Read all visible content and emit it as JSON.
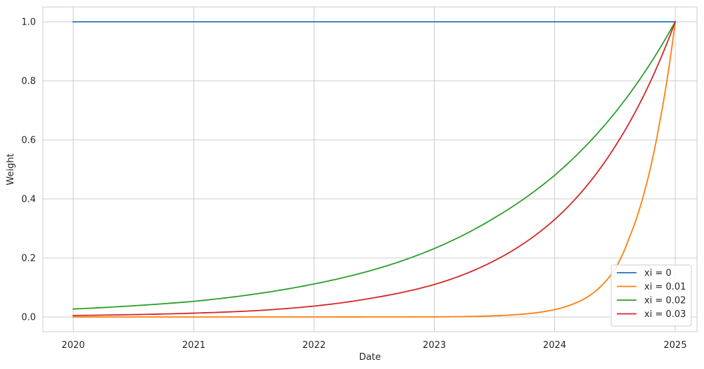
{
  "chart_data": {
    "type": "line",
    "xlabel": "Date",
    "ylabel": "Weight",
    "x_ticks": [
      "2020",
      "2021",
      "2022",
      "2023",
      "2024",
      "2025"
    ],
    "y_ticks": [
      "0.0",
      "0.2",
      "0.4",
      "0.6",
      "0.8",
      "1.0"
    ],
    "xlim": [
      "2019-10-01",
      "2025-03-08"
    ],
    "ylim": [
      -0.05,
      1.05
    ],
    "grid": true,
    "legend_position": "bottom-right",
    "series": [
      {
        "name": "xi = 0",
        "color": "#1f77b4",
        "x": [
          "2020-01-01",
          "2021-01-01",
          "2022-01-01",
          "2023-01-01",
          "2024-01-01",
          "2025-01-01"
        ],
        "y": [
          1.0,
          1.0,
          1.0,
          1.0,
          1.0,
          1.0
        ]
      },
      {
        "name": "xi = 0.01",
        "color": "#ff7f0e",
        "x": [
          "2020-01-01",
          "2021-01-01",
          "2022-01-01",
          "2023-01-01",
          "2023-07-01",
          "2024-01-01",
          "2024-04-01",
          "2024-07-01",
          "2024-08-15",
          "2024-10-01",
          "2024-11-15",
          "2025-01-01"
        ],
        "y": [
          0.0,
          0.0,
          0.0,
          0.0005,
          0.004,
          0.025,
          0.062,
          0.16,
          0.27,
          0.43,
          0.66,
          1.0
        ]
      },
      {
        "name": "xi = 0.02",
        "color": "#2ca02c",
        "x": [
          "2020-01-01",
          "2020-07-01",
          "2021-01-01",
          "2021-07-01",
          "2022-01-01",
          "2022-07-01",
          "2023-01-01",
          "2023-07-01",
          "2024-01-01",
          "2024-07-01",
          "2025-01-01"
        ],
        "y": [
          0.027,
          0.038,
          0.053,
          0.077,
          0.112,
          0.16,
          0.232,
          0.335,
          0.48,
          0.69,
          1.0
        ]
      },
      {
        "name": "xi = 0.03",
        "color": "#d62728",
        "x": [
          "2020-01-01",
          "2020-07-01",
          "2021-01-01",
          "2021-07-01",
          "2022-01-01",
          "2022-07-01",
          "2023-01-01",
          "2023-07-01",
          "2024-01-01",
          "2024-07-01",
          "2025-01-01"
        ],
        "y": [
          0.005,
          0.008,
          0.013,
          0.021,
          0.037,
          0.065,
          0.11,
          0.19,
          0.33,
          0.575,
          1.0
        ]
      }
    ]
  }
}
